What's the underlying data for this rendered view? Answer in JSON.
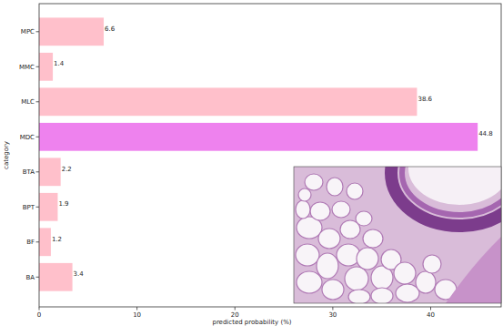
{
  "chart_data": {
    "type": "bar",
    "orientation": "horizontal",
    "categories": [
      "MPC",
      "MMC",
      "MLC",
      "MDC",
      "BTA",
      "BPT",
      "BF",
      "BA"
    ],
    "values": [
      6.6,
      1.4,
      38.6,
      44.8,
      2.2,
      1.9,
      1.2,
      3.4
    ],
    "colors": [
      "#ffc0cb",
      "#ffc0cb",
      "#ffc0cb",
      "#ee82ee",
      "#ffc0cb",
      "#ffc0cb",
      "#ffc0cb",
      "#ffc0cb"
    ],
    "x_label": "predicted probability (%)",
    "y_label": "category",
    "xlim": [
      0,
      47.2
    ],
    "xticks": [
      0,
      10,
      20,
      30,
      40
    ],
    "data_labels": true,
    "grid": false
  }
}
